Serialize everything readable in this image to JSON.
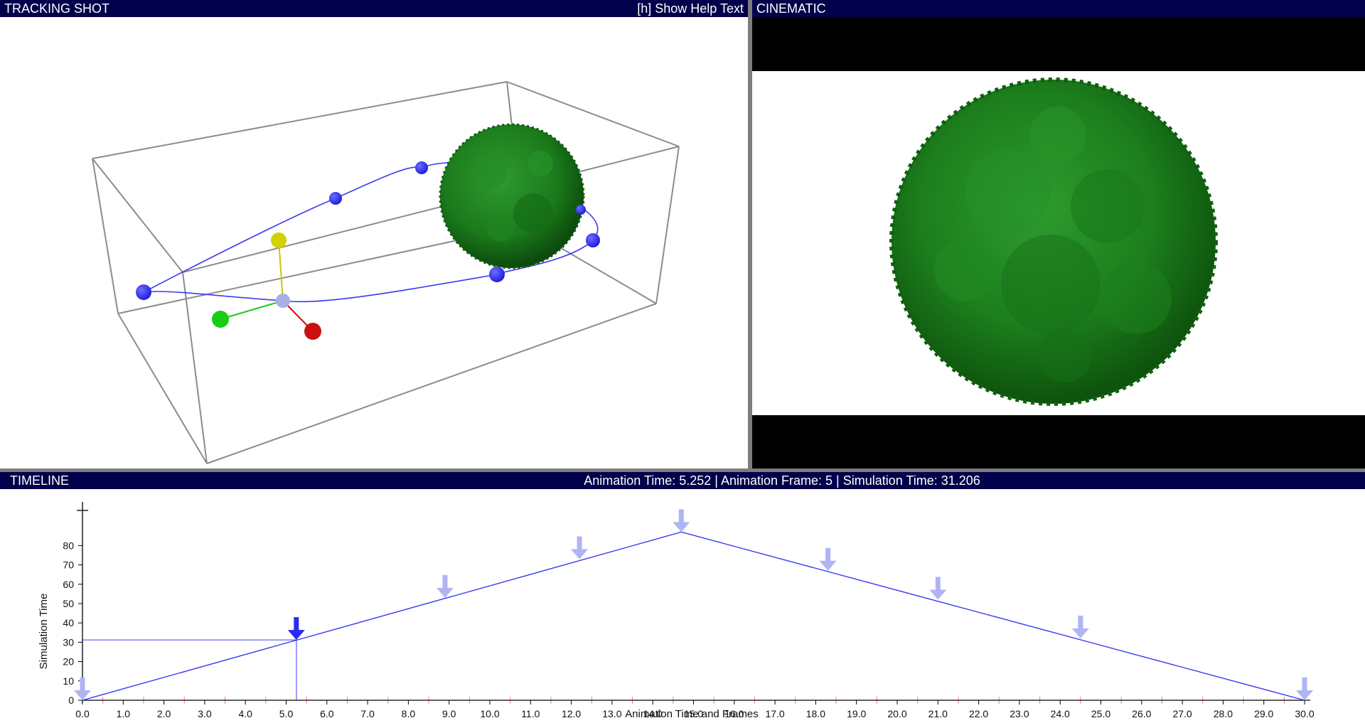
{
  "tracking": {
    "title": "TRACKING SHOT",
    "help": "[h] Show Help Text"
  },
  "cinematic": {
    "title": "CINEMATIC"
  },
  "timeline": {
    "title": "TIMELINE",
    "status": "Animation Time: 5.252 | Animation Frame: 5 | Simulation Time: 31.206",
    "xlabel": "Animation Time and Frames",
    "ylabel": "Simulation Time"
  },
  "colors": {
    "title_bar": "#00004b",
    "keyframe_marker": "#b0b4f4",
    "active_marker": "#2b2bf0",
    "path": "#3a3af2",
    "molecule": "#1b7f1b"
  },
  "chart_data": {
    "type": "line",
    "x_ticks": [
      "0.0",
      "1.0",
      "2.0",
      "3.0",
      "4.0",
      "5.0",
      "6.0",
      "7.0",
      "8.0",
      "9.0",
      "10.0",
      "11.0",
      "12.0",
      "13.0",
      "14.0",
      "15.0",
      "16.0",
      "17.0",
      "18.0",
      "19.0",
      "20.0",
      "21.0",
      "22.0",
      "23.0",
      "24.0",
      "25.0",
      "26.0",
      "27.0",
      "28.0",
      "29.0",
      "30.0"
    ],
    "y_ticks": [
      "0",
      "10",
      "20",
      "30",
      "40",
      "50",
      "60",
      "70",
      "80"
    ],
    "xlim": [
      0,
      30
    ],
    "ylim": [
      0,
      88
    ],
    "series": [
      {
        "x": [
          0.0,
          14.7,
          30.0
        ],
        "y": [
          0,
          87,
          0
        ]
      }
    ],
    "keyframes": [
      {
        "x": 0.0,
        "y": 0,
        "active": false
      },
      {
        "x": 5.25,
        "y": 31.2,
        "active": true
      },
      {
        "x": 8.9,
        "y": 53,
        "active": false
      },
      {
        "x": 12.2,
        "y": 73,
        "active": false
      },
      {
        "x": 14.7,
        "y": 87,
        "active": false
      },
      {
        "x": 18.3,
        "y": 67,
        "active": false
      },
      {
        "x": 21.0,
        "y": 52,
        "active": false
      },
      {
        "x": 24.5,
        "y": 32,
        "active": false
      },
      {
        "x": 30.0,
        "y": 0,
        "active": false
      }
    ],
    "cursor": {
      "x": 5.252,
      "y": 31.206
    }
  }
}
